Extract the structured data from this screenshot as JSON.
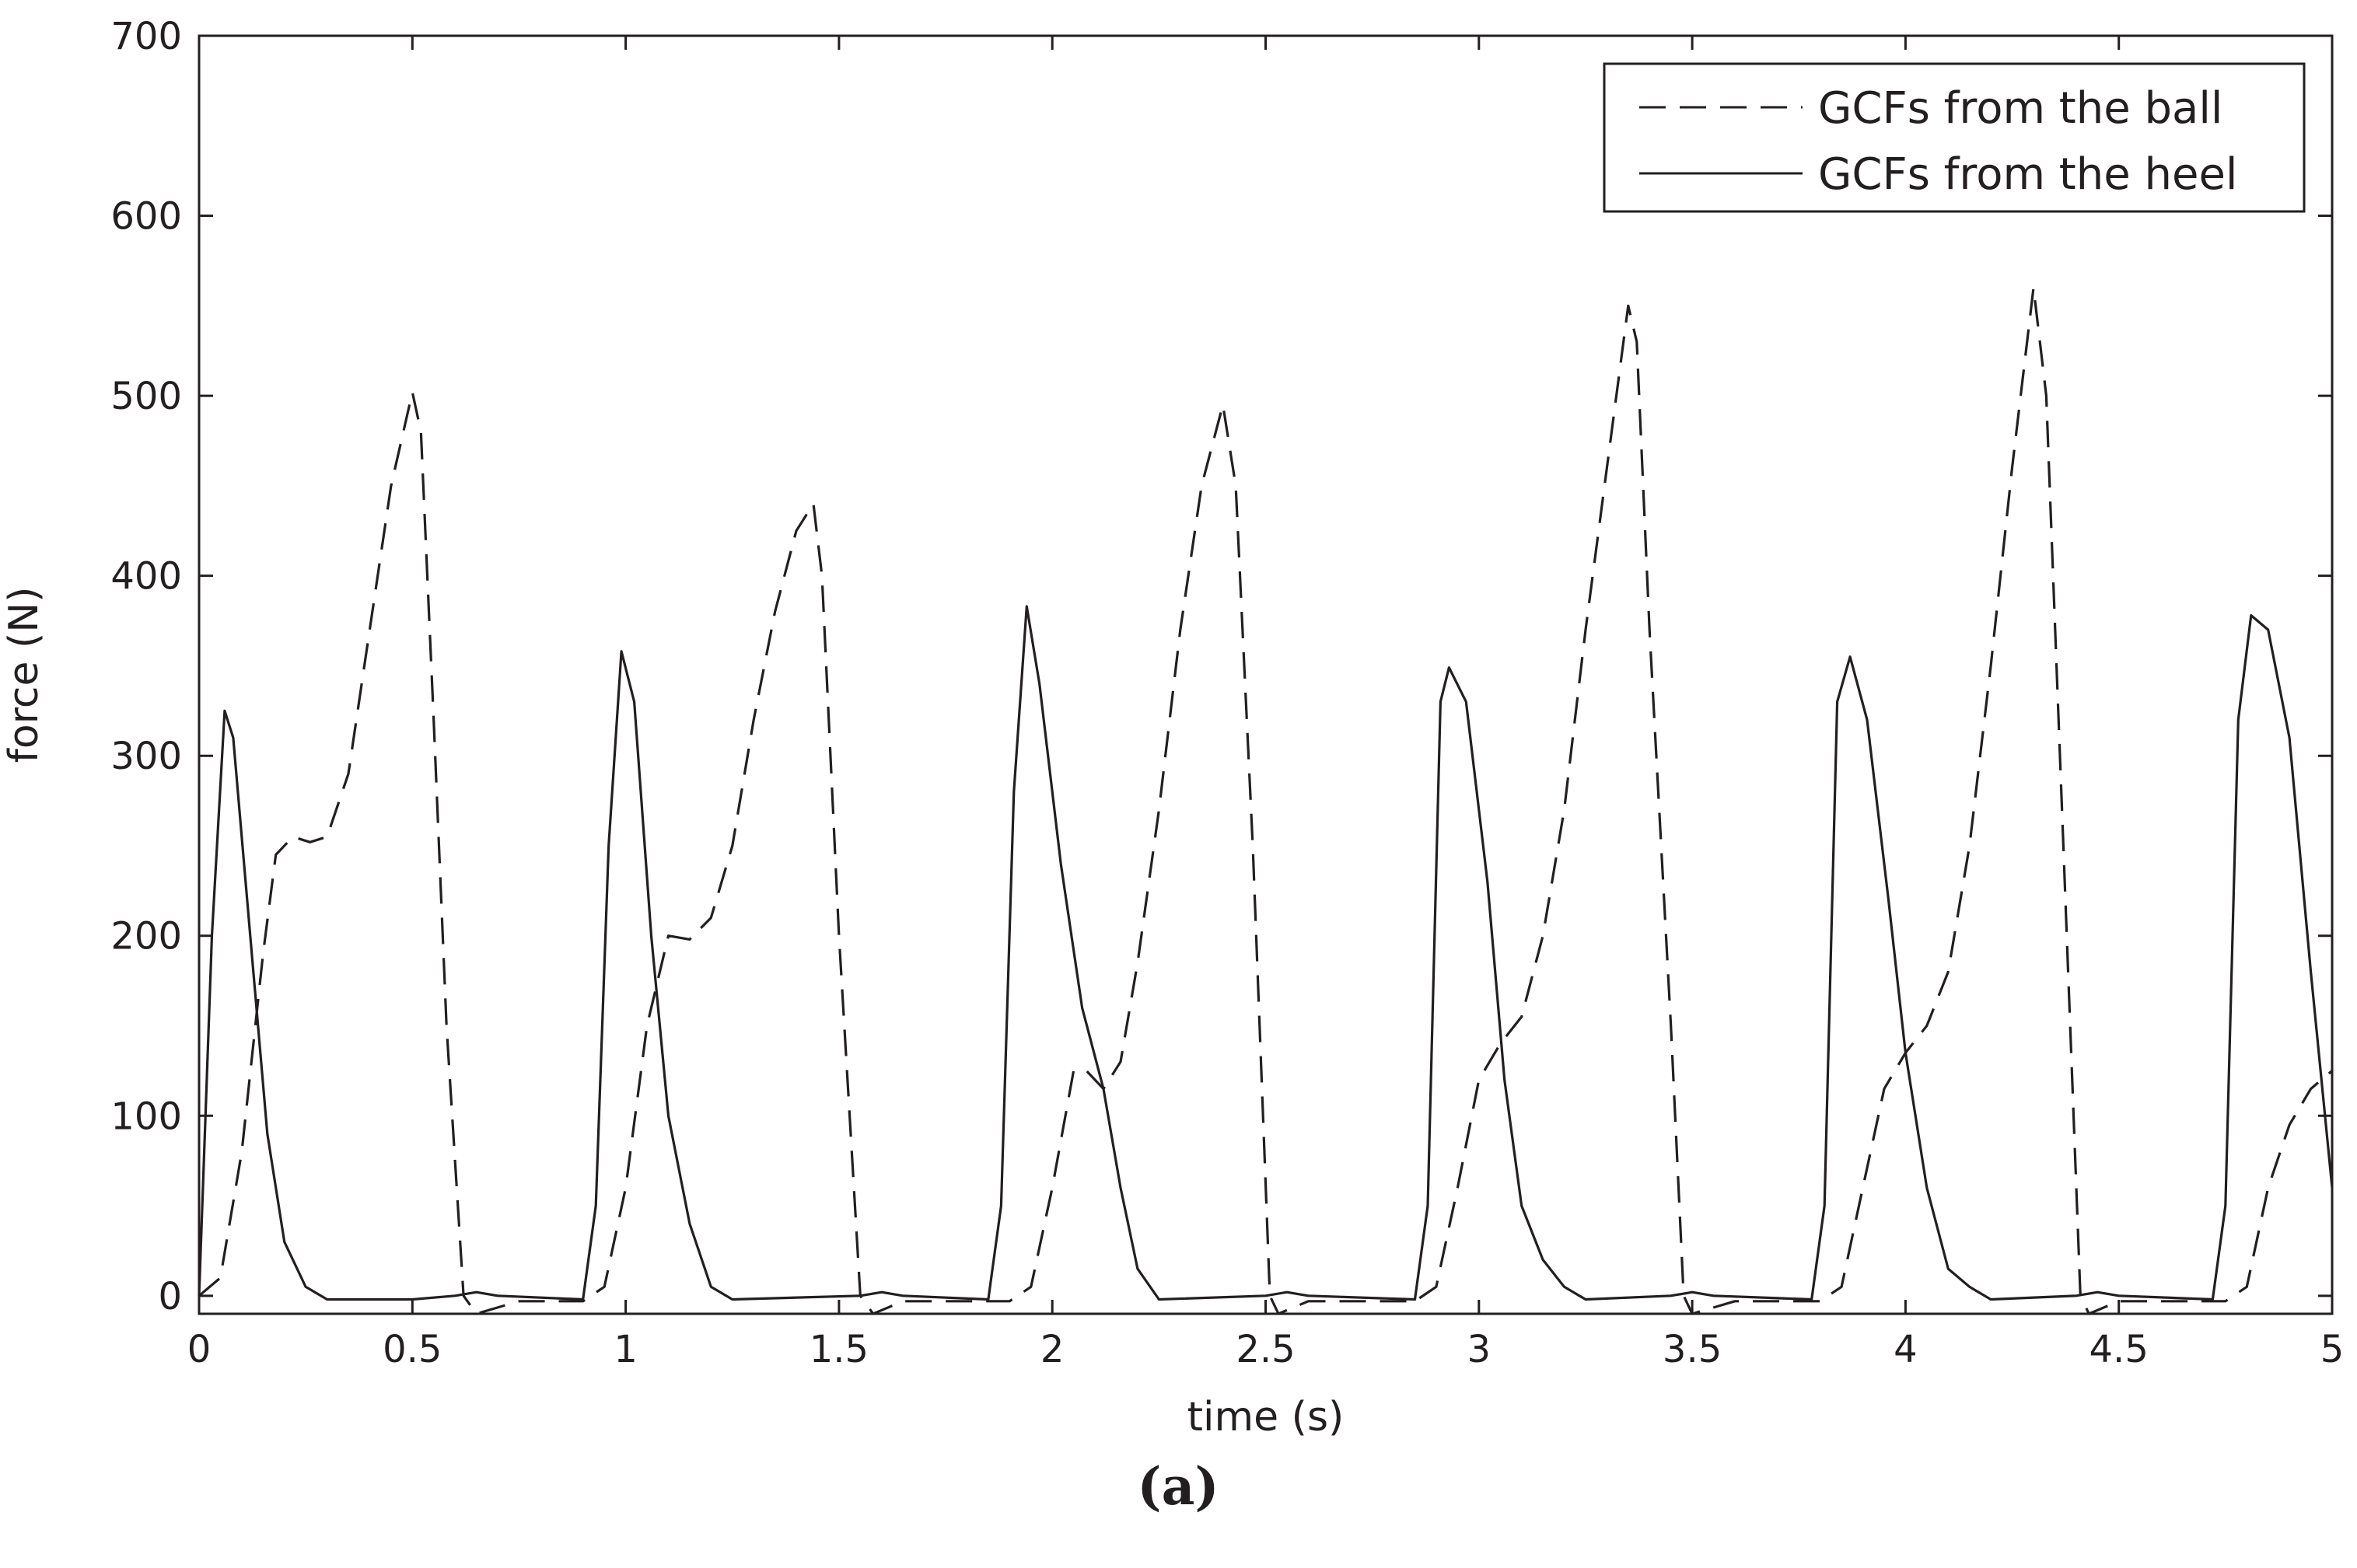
{
  "chart_data": {
    "type": "line",
    "xlabel": "time (s)",
    "ylabel": "force (N)",
    "xlim": [
      0,
      5
    ],
    "ylim": [
      -10,
      700
    ],
    "x_ticks": [
      "0",
      "0.5",
      "1",
      "1.5",
      "2",
      "2.5",
      "3",
      "3.5",
      "4",
      "4.5",
      "5"
    ],
    "y_ticks": [
      "0",
      "100",
      "200",
      "300",
      "400",
      "500",
      "600",
      "700"
    ],
    "grid": false,
    "legend_position": "top-right",
    "caption": "(a)",
    "series": [
      {
        "name": "GCFs from the ball",
        "style": "dashed",
        "color": "#231f20",
        "points": [
          [
            0.0,
            0
          ],
          [
            0.05,
            10
          ],
          [
            0.1,
            80
          ],
          [
            0.15,
            190
          ],
          [
            0.18,
            245
          ],
          [
            0.22,
            255
          ],
          [
            0.26,
            252
          ],
          [
            0.3,
            255
          ],
          [
            0.35,
            290
          ],
          [
            0.4,
            370
          ],
          [
            0.45,
            450
          ],
          [
            0.5,
            502
          ],
          [
            0.52,
            480
          ],
          [
            0.55,
            320
          ],
          [
            0.58,
            150
          ],
          [
            0.62,
            0
          ],
          [
            0.65,
            -10
          ],
          [
            0.75,
            -3
          ],
          [
            0.9,
            -3
          ],
          [
            0.95,
            5
          ],
          [
            1.0,
            60
          ],
          [
            1.05,
            150
          ],
          [
            1.1,
            200
          ],
          [
            1.15,
            198
          ],
          [
            1.2,
            210
          ],
          [
            1.25,
            250
          ],
          [
            1.3,
            320
          ],
          [
            1.35,
            380
          ],
          [
            1.4,
            425
          ],
          [
            1.44,
            440
          ],
          [
            1.46,
            400
          ],
          [
            1.5,
            200
          ],
          [
            1.55,
            0
          ],
          [
            1.58,
            -10
          ],
          [
            1.65,
            -3
          ],
          [
            1.9,
            -3
          ],
          [
            1.95,
            5
          ],
          [
            2.0,
            60
          ],
          [
            2.05,
            125
          ],
          [
            2.08,
            125
          ],
          [
            2.12,
            115
          ],
          [
            2.16,
            130
          ],
          [
            2.2,
            185
          ],
          [
            2.25,
            270
          ],
          [
            2.3,
            370
          ],
          [
            2.35,
            450
          ],
          [
            2.4,
            495
          ],
          [
            2.43,
            450
          ],
          [
            2.47,
            250
          ],
          [
            2.51,
            0
          ],
          [
            2.53,
            -10
          ],
          [
            2.6,
            -3
          ],
          [
            2.85,
            -3
          ],
          [
            2.9,
            5
          ],
          [
            2.95,
            60
          ],
          [
            3.0,
            120
          ],
          [
            3.05,
            140
          ],
          [
            3.1,
            155
          ],
          [
            3.15,
            200
          ],
          [
            3.2,
            270
          ],
          [
            3.25,
            370
          ],
          [
            3.3,
            460
          ],
          [
            3.35,
            550
          ],
          [
            3.37,
            530
          ],
          [
            3.4,
            370
          ],
          [
            3.45,
            150
          ],
          [
            3.48,
            0
          ],
          [
            3.5,
            -10
          ],
          [
            3.6,
            -3
          ],
          [
            3.8,
            -3
          ],
          [
            3.85,
            5
          ],
          [
            3.9,
            60
          ],
          [
            3.95,
            115
          ],
          [
            4.0,
            135
          ],
          [
            4.05,
            150
          ],
          [
            4.1,
            180
          ],
          [
            4.15,
            250
          ],
          [
            4.2,
            350
          ],
          [
            4.25,
            460
          ],
          [
            4.3,
            560
          ],
          [
            4.33,
            500
          ],
          [
            4.37,
            250
          ],
          [
            4.41,
            0
          ],
          [
            4.43,
            -10
          ],
          [
            4.5,
            -3
          ],
          [
            4.75,
            -3
          ],
          [
            4.8,
            5
          ],
          [
            4.85,
            60
          ],
          [
            4.9,
            95
          ],
          [
            4.95,
            115
          ],
          [
            5.0,
            125
          ]
        ]
      },
      {
        "name": "GCFs from the heel",
        "style": "solid",
        "color": "#231f20",
        "points": [
          [
            0.0,
            0
          ],
          [
            0.03,
            200
          ],
          [
            0.06,
            325
          ],
          [
            0.08,
            310
          ],
          [
            0.12,
            200
          ],
          [
            0.16,
            90
          ],
          [
            0.2,
            30
          ],
          [
            0.25,
            5
          ],
          [
            0.3,
            -2
          ],
          [
            0.5,
            -2
          ],
          [
            0.6,
            0
          ],
          [
            0.65,
            2
          ],
          [
            0.7,
            0
          ],
          [
            0.9,
            -2
          ],
          [
            0.93,
            50
          ],
          [
            0.96,
            250
          ],
          [
            0.99,
            358
          ],
          [
            1.02,
            330
          ],
          [
            1.06,
            200
          ],
          [
            1.1,
            100
          ],
          [
            1.15,
            40
          ],
          [
            1.2,
            5
          ],
          [
            1.25,
            -2
          ],
          [
            1.55,
            0
          ],
          [
            1.6,
            2
          ],
          [
            1.65,
            0
          ],
          [
            1.85,
            -2
          ],
          [
            1.88,
            50
          ],
          [
            1.91,
            280
          ],
          [
            1.94,
            383
          ],
          [
            1.97,
            340
          ],
          [
            2.02,
            240
          ],
          [
            2.07,
            160
          ],
          [
            2.12,
            115
          ],
          [
            2.16,
            60
          ],
          [
            2.2,
            15
          ],
          [
            2.25,
            -2
          ],
          [
            2.5,
            0
          ],
          [
            2.55,
            2
          ],
          [
            2.6,
            0
          ],
          [
            2.85,
            -2
          ],
          [
            2.88,
            50
          ],
          [
            2.91,
            330
          ],
          [
            2.93,
            349
          ],
          [
            2.97,
            330
          ],
          [
            3.02,
            230
          ],
          [
            3.06,
            120
          ],
          [
            3.1,
            50
          ],
          [
            3.15,
            20
          ],
          [
            3.2,
            5
          ],
          [
            3.25,
            -2
          ],
          [
            3.45,
            0
          ],
          [
            3.5,
            2
          ],
          [
            3.55,
            0
          ],
          [
            3.78,
            -2
          ],
          [
            3.81,
            50
          ],
          [
            3.84,
            330
          ],
          [
            3.87,
            355
          ],
          [
            3.91,
            320
          ],
          [
            3.96,
            220
          ],
          [
            4.0,
            135
          ],
          [
            4.05,
            60
          ],
          [
            4.1,
            15
          ],
          [
            4.15,
            5
          ],
          [
            4.2,
            -2
          ],
          [
            4.4,
            0
          ],
          [
            4.45,
            2
          ],
          [
            4.5,
            0
          ],
          [
            4.72,
            -2
          ],
          [
            4.75,
            50
          ],
          [
            4.78,
            320
          ],
          [
            4.81,
            378
          ],
          [
            4.85,
            370
          ],
          [
            4.9,
            310
          ],
          [
            4.95,
            180
          ],
          [
            5.0,
            60
          ]
        ]
      }
    ]
  }
}
